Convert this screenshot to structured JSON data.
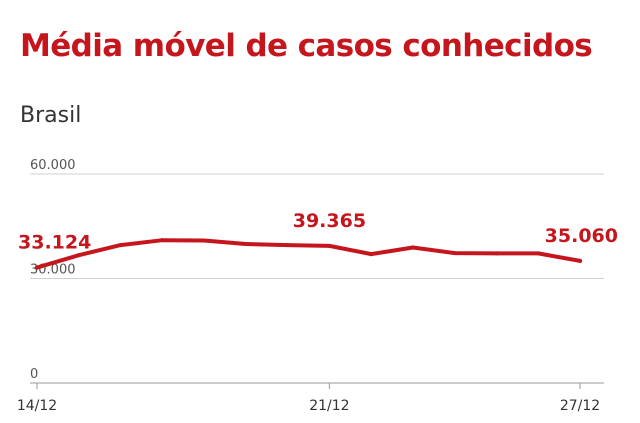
{
  "title": "Média móvel de casos conhecidos",
  "subtitle": "Brasil",
  "colors": {
    "accent": "#c4161c",
    "grid": "#d0d0d0",
    "text": "#333333",
    "tick": "#555555"
  },
  "chart_data": {
    "type": "line",
    "title": "Média móvel de casos conhecidos",
    "subtitle": "Brasil",
    "xlabel": "",
    "ylabel": "",
    "ylim": [
      0,
      60000
    ],
    "yticks": [
      {
        "value": 0,
        "label": "0"
      },
      {
        "value": 30000,
        "label": "30.000"
      },
      {
        "value": 60000,
        "label": "60.000"
      }
    ],
    "grid": true,
    "x": [
      "14/12",
      "15/12",
      "16/12",
      "17/12",
      "18/12",
      "19/12",
      "20/12",
      "21/12",
      "22/12",
      "23/12",
      "24/12",
      "25/12",
      "26/12",
      "27/12"
    ],
    "xticks": [
      "14/12",
      "21/12",
      "27/12"
    ],
    "series": [
      {
        "values": [
          33124,
          36700,
          39600,
          41000,
          40900,
          39900,
          39600,
          39365,
          37000,
          38900,
          37300,
          37200,
          37200,
          35060
        ]
      }
    ],
    "annotations": [
      {
        "index": 0,
        "label": "33.124"
      },
      {
        "index": 7,
        "label": "39.365"
      },
      {
        "index": 13,
        "label": "35.060"
      }
    ]
  }
}
